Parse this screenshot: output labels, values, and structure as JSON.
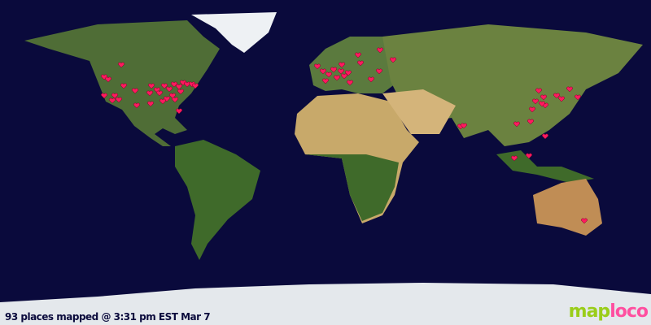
{
  "caption": "93 places mapped @ 3:31 pm EST Mar 7",
  "logo": {
    "part1": "map",
    "part2": "loco"
  },
  "colors": {
    "ocean": "#0a0a3c",
    "marker": "#ff1a5e",
    "land": "#5a7a3a",
    "desert": "#c8a96a",
    "ice": "#e8ecf0"
  },
  "marker_icon": "heart-icon"
}
